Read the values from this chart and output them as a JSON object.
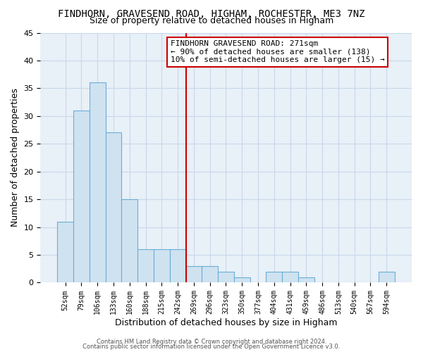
{
  "title": "FINDHORN, GRAVESEND ROAD, HIGHAM, ROCHESTER, ME3 7NZ",
  "subtitle": "Size of property relative to detached houses in Higham",
  "xlabel": "Distribution of detached houses by size in Higham",
  "ylabel": "Number of detached properties",
  "bar_labels": [
    "52sqm",
    "79sqm",
    "106sqm",
    "133sqm",
    "160sqm",
    "188sqm",
    "215sqm",
    "242sqm",
    "269sqm",
    "296sqm",
    "323sqm",
    "350sqm",
    "377sqm",
    "404sqm",
    "431sqm",
    "459sqm",
    "486sqm",
    "513sqm",
    "540sqm",
    "567sqm",
    "594sqm"
  ],
  "bar_values": [
    11,
    31,
    36,
    27,
    15,
    6,
    6,
    6,
    3,
    3,
    2,
    1,
    0,
    2,
    2,
    1,
    0,
    0,
    0,
    0,
    2
  ],
  "bar_fill_color": "#cfe2f0",
  "bar_edge_color": "#6aaed6",
  "grid_color": "#c8d8e8",
  "bg_color": "#e8f0f8",
  "vline_color": "#cc0000",
  "vline_index": 8,
  "ylim": [
    0,
    45
  ],
  "yticks": [
    0,
    5,
    10,
    15,
    20,
    25,
    30,
    35,
    40,
    45
  ],
  "annotation_title": "FINDHORN GRAVESEND ROAD: 271sqm",
  "annotation_line1": "← 90% of detached houses are smaller (138)",
  "annotation_line2": "10% of semi-detached houses are larger (15) →",
  "annotation_box_color": "#ffffff",
  "annotation_box_edge": "#cc0000",
  "title_fontsize": 10,
  "subtitle_fontsize": 9,
  "footer1": "Contains HM Land Registry data © Crown copyright and database right 2024.",
  "footer2": "Contains public sector information licensed under the Open Government Licence v3.0."
}
